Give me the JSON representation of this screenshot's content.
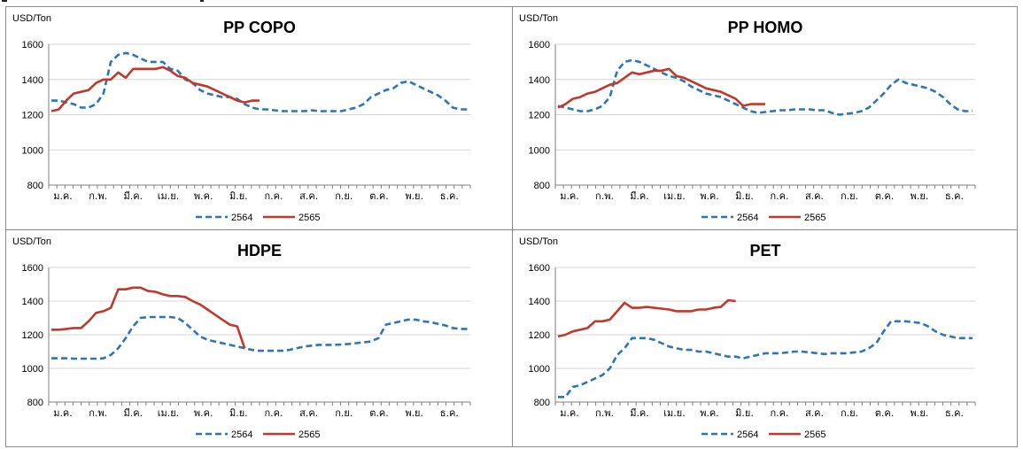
{
  "legend": {
    "series_2564": "2564",
    "series_2565": "2565"
  },
  "colors": {
    "series_2564": "#2e75b6",
    "series_2565": "#c0392b",
    "grid": "#d4d4d4",
    "axis": "#7f7f7f",
    "border": "#8c8c8c"
  },
  "chart_data": [
    {
      "type": "line",
      "title": "PP COPO",
      "ylabel": "USD/Ton",
      "ylim": [
        800,
        1600
      ],
      "yticks": [
        800,
        1000,
        1200,
        1400,
        1600
      ],
      "x_tick_labels": [
        "ม.ค.",
        "ก.พ.",
        "มี.ค.",
        "เม.ย.",
        "พ.ค.",
        "มิ.ย.",
        "ก.ค.",
        "ส.ค.",
        "ก.ย.",
        "ต.ค.",
        "พ.ย.",
        "ธ.ค."
      ],
      "grid": true,
      "legend_position": "bottom",
      "series": [
        {
          "name": "2564",
          "style": "dashed",
          "values": [
            1280,
            1280,
            1270,
            1260,
            1240,
            1240,
            1260,
            1320,
            1500,
            1540,
            1550,
            1540,
            1520,
            1500,
            1500,
            1500,
            1460,
            1450,
            1400,
            1380,
            1340,
            1320,
            1310,
            1300,
            1300,
            1290,
            1260,
            1240,
            1230,
            1230,
            1225,
            1220,
            1220,
            1220,
            1220,
            1225,
            1220,
            1220,
            1220,
            1220,
            1230,
            1240,
            1260,
            1300,
            1320,
            1340,
            1350,
            1380,
            1390,
            1370,
            1350,
            1330,
            1310,
            1280,
            1240,
            1230,
            1230
          ]
        },
        {
          "name": "2565",
          "style": "solid",
          "values": [
            1220,
            1230,
            1280,
            1320,
            1330,
            1340,
            1380,
            1400,
            1400,
            1440,
            1410,
            1460,
            1460,
            1460,
            1460,
            1470,
            1450,
            1420,
            1410,
            1380,
            1370,
            1360,
            1340,
            1320,
            1300,
            1280,
            1270,
            1280,
            1280
          ]
        }
      ]
    },
    {
      "type": "line",
      "title": "PP HOMO",
      "ylabel": "USD/Ton",
      "ylim": [
        800,
        1600
      ],
      "yticks": [
        800,
        1000,
        1200,
        1400,
        1600
      ],
      "x_tick_labels": [
        "ม.ค.",
        "ก.พ.",
        "มี.ค.",
        "เม.ย.",
        "พ.ค.",
        "มิ.ย.",
        "ก.ค.",
        "ส.ค.",
        "ก.ย.",
        "ต.ค.",
        "พ.ย.",
        "ธ.ค."
      ],
      "grid": true,
      "legend_position": "bottom",
      "series": [
        {
          "name": "2564",
          "style": "dashed",
          "values": [
            1250,
            1240,
            1230,
            1220,
            1220,
            1230,
            1250,
            1300,
            1450,
            1500,
            1510,
            1500,
            1480,
            1460,
            1440,
            1420,
            1410,
            1390,
            1360,
            1340,
            1320,
            1310,
            1300,
            1280,
            1260,
            1240,
            1220,
            1210,
            1215,
            1220,
            1225,
            1225,
            1230,
            1230,
            1230,
            1225,
            1225,
            1210,
            1200,
            1205,
            1210,
            1220,
            1240,
            1280,
            1320,
            1370,
            1400,
            1380,
            1370,
            1360,
            1350,
            1330,
            1300,
            1260,
            1230,
            1220,
            1220
          ]
        },
        {
          "name": "2565",
          "style": "solid",
          "values": [
            1240,
            1260,
            1290,
            1300,
            1320,
            1330,
            1350,
            1370,
            1380,
            1410,
            1440,
            1430,
            1440,
            1450,
            1450,
            1460,
            1420,
            1410,
            1390,
            1370,
            1350,
            1340,
            1330,
            1310,
            1290,
            1250,
            1260,
            1260,
            1260
          ]
        }
      ]
    },
    {
      "type": "line",
      "title": "HDPE",
      "ylabel": "USD/Ton",
      "ylim": [
        800,
        1600
      ],
      "yticks": [
        800,
        1000,
        1200,
        1400,
        1600
      ],
      "x_tick_labels": [
        "ม.ค.",
        "ก.พ.",
        "มี.ค.",
        "เม.ย.",
        "พ.ค.",
        "มิ.ย.",
        "ก.ค.",
        "ส.ค.",
        "ก.ย.",
        "ต.ค.",
        "พ.ย.",
        "ธ.ค."
      ],
      "grid": true,
      "legend_position": "bottom",
      "series": [
        {
          "name": "2564",
          "style": "dashed",
          "values": [
            1060,
            1060,
            1060,
            1058,
            1058,
            1058,
            1058,
            1060,
            1080,
            1120,
            1180,
            1250,
            1300,
            1305,
            1305,
            1305,
            1305,
            1300,
            1270,
            1230,
            1190,
            1170,
            1160,
            1150,
            1140,
            1130,
            1120,
            1110,
            1105,
            1105,
            1105,
            1105,
            1110,
            1120,
            1130,
            1135,
            1140,
            1140,
            1140,
            1142,
            1145,
            1150,
            1155,
            1160,
            1180,
            1260,
            1270,
            1280,
            1290,
            1290,
            1280,
            1275,
            1265,
            1255,
            1240,
            1235,
            1235
          ]
        },
        {
          "name": "2565",
          "style": "solid",
          "values": [
            1230,
            1230,
            1235,
            1240,
            1240,
            1280,
            1330,
            1340,
            1360,
            1470,
            1470,
            1480,
            1480,
            1460,
            1455,
            1440,
            1430,
            1430,
            1425,
            1400,
            1380,
            1350,
            1320,
            1290,
            1260,
            1250,
            1120
          ]
        }
      ]
    },
    {
      "type": "line",
      "title": "PET",
      "ylabel": "USD/Ton",
      "ylim": [
        800,
        1600
      ],
      "yticks": [
        800,
        1000,
        1200,
        1400,
        1600
      ],
      "x_tick_labels": [
        "ม.ค.",
        "ก.พ.",
        "มี.ค.",
        "เม.ย.",
        "พ.ค.",
        "มิ.ย.",
        "ก.ค.",
        "ส.ค.",
        "ก.ย.",
        "ต.ค.",
        "พ.ย.",
        "ธ.ค."
      ],
      "grid": true,
      "legend_position": "bottom",
      "series": [
        {
          "name": "2564",
          "style": "dashed",
          "values": [
            830,
            830,
            890,
            900,
            920,
            940,
            960,
            1000,
            1080,
            1120,
            1180,
            1180,
            1180,
            1170,
            1150,
            1130,
            1120,
            1110,
            1110,
            1100,
            1100,
            1090,
            1080,
            1070,
            1070,
            1060,
            1070,
            1080,
            1090,
            1090,
            1090,
            1095,
            1100,
            1100,
            1095,
            1090,
            1085,
            1090,
            1090,
            1090,
            1095,
            1100,
            1120,
            1150,
            1220,
            1280,
            1280,
            1280,
            1275,
            1270,
            1250,
            1220,
            1200,
            1190,
            1180,
            1180,
            1180
          ]
        },
        {
          "name": "2565",
          "style": "solid",
          "values": [
            1190,
            1200,
            1220,
            1230,
            1240,
            1280,
            1280,
            1290,
            1340,
            1390,
            1360,
            1360,
            1365,
            1360,
            1355,
            1350,
            1340,
            1340,
            1340,
            1350,
            1350,
            1360,
            1365,
            1405,
            1400
          ]
        }
      ]
    }
  ]
}
